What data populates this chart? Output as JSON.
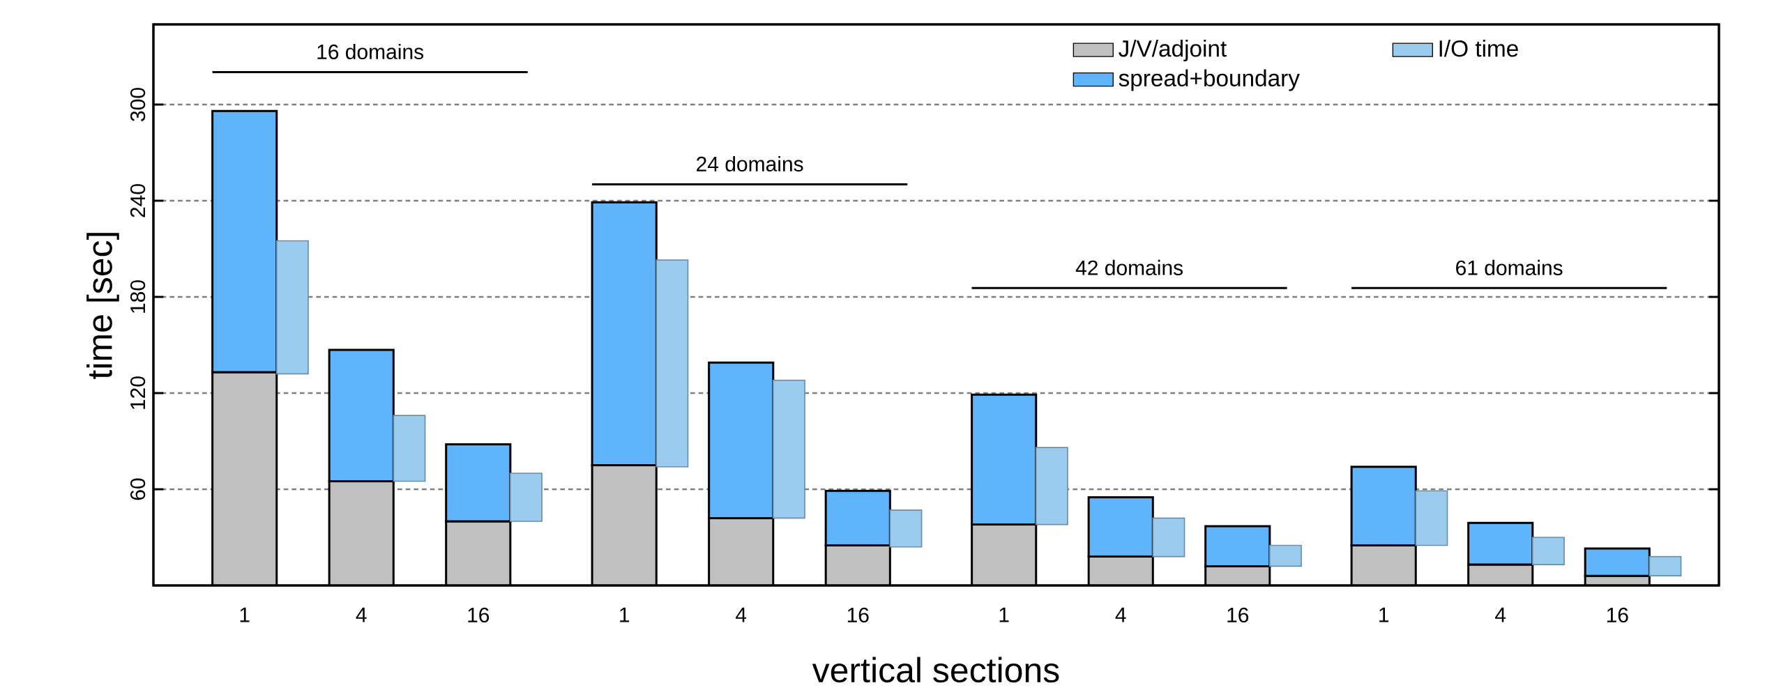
{
  "chart_data": [
    {
      "type": "bar",
      "stacked": true,
      "xlabel": "vertical sections",
      "ylabel": "time [sec]",
      "categories": [
        "1",
        "4",
        "16",
        "1",
        "4",
        "16",
        "1",
        "4",
        "16",
        "1",
        "4",
        "16"
      ],
      "series": [
        {
          "name": "J/V/adjoint",
          "color": "#c0c0c0",
          "values": [
            133,
            65,
            40,
            75,
            42,
            25,
            38,
            18,
            12,
            25,
            13,
            6
          ]
        },
        {
          "name": "spread+boundary",
          "color": "#5fb4fb",
          "values": [
            163,
            82,
            48,
            164,
            97,
            34,
            81,
            37,
            25,
            49,
            26,
            17
          ]
        }
      ],
      "ylim": [
        0,
        350
      ],
      "yticks": [
        60,
        120,
        180,
        240,
        300
      ],
      "grid": "y",
      "legend": "top right",
      "annotations": [
        "16 domains",
        "24 domains",
        "42 domains",
        "61 domains"
      ]
    },
    {
      "type": "bar",
      "categories": [
        "1",
        "4",
        "16",
        "1",
        "4",
        "16",
        "1",
        "4",
        "16",
        "1",
        "4",
        "16"
      ],
      "series": [
        {
          "name": "I/O time",
          "color": "#9ccbf0",
          "base": [
            132,
            65,
            40,
            74,
            42,
            24,
            38,
            18,
            12,
            25,
            13,
            6
          ],
          "values": [
            83,
            41,
            30,
            129,
            86,
            23,
            48,
            24,
            13,
            34,
            17,
            12
          ]
        }
      ],
      "ylim": [
        0,
        350
      ],
      "yticks": [
        {
          "value": 60,
          "label": null
        },
        {
          "value": 120,
          "label": null
        },
        {
          "value": 180,
          "label": null
        },
        {
          "value": 240,
          "label": null
        },
        {
          "value": 300,
          "label": null
        }
      ],
      "tick_labels": false,
      "legend": "top right"
    }
  ]
}
